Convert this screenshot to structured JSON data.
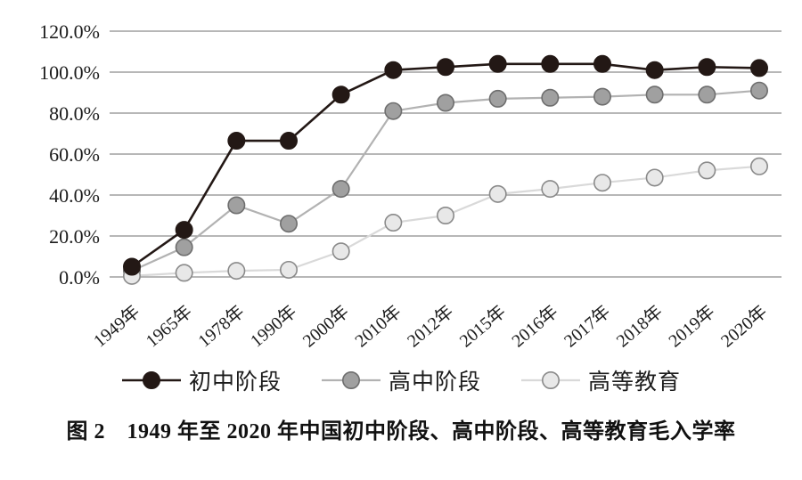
{
  "figure": {
    "caption": "图 2　1949 年至 2020 年中国初中阶段、高中阶段、高等教育毛入学率"
  },
  "chart_data": {
    "type": "line",
    "title": "1949年至2020年中国初中阶段、高中阶段、高等教育毛入学率",
    "xlabel": "",
    "ylabel": "",
    "ylim": [
      0,
      120
    ],
    "ytick_step": 20,
    "ytick_labels": [
      "120.0%",
      "100.0%",
      "80.0%",
      "60.0%",
      "40.0%",
      "20.0%",
      "0.0%"
    ],
    "grid": true,
    "legend_position": "bottom",
    "categories": [
      "1949年",
      "1965年",
      "1978年",
      "1990年",
      "2000年",
      "2010年",
      "2012年",
      "2015年",
      "2016年",
      "2017年",
      "2018年",
      "2019年",
      "2020年"
    ],
    "series": [
      {
        "name": "初中阶段",
        "values": [
          5,
          23,
          66.5,
          66.5,
          89,
          101,
          102.5,
          104,
          104,
          104,
          101,
          102.5,
          102
        ],
        "line_color": "#231815",
        "marker_fill": "#231815",
        "marker_stroke": "#231815",
        "line_width": 2.6
      },
      {
        "name": "高中阶段",
        "values": [
          3,
          14.5,
          35,
          26,
          43,
          81,
          85,
          87,
          87.5,
          88,
          89,
          89,
          91
        ],
        "line_color": "#b2b2b2",
        "marker_fill": "#a0a0a0",
        "marker_stroke": "#6e6e6e",
        "line_width": 2.2
      },
      {
        "name": "高等教育",
        "values": [
          0.5,
          2,
          3,
          3.5,
          12.5,
          26.5,
          30,
          40.5,
          43,
          46,
          48.5,
          52,
          54
        ],
        "line_color": "#d9d9d9",
        "marker_fill": "#e8e8e8",
        "marker_stroke": "#8a8a8a",
        "line_width": 2.2
      }
    ],
    "colors": {
      "grid": "#8c8c8c",
      "axis_text": "#1c1c1c",
      "background": "#ffffff"
    }
  }
}
